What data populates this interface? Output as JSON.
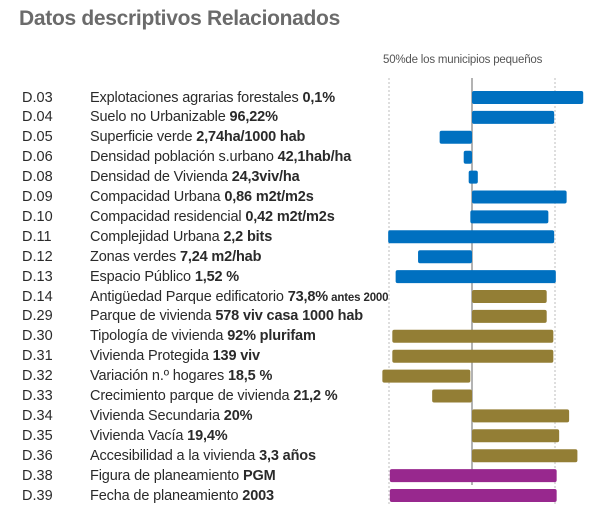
{
  "title": "Datos descriptivos Relacionados",
  "band_label": "50%de los municipios pequeños",
  "colors": {
    "environment": "#0070c0",
    "housing": "#937e35",
    "planning": "#98288e",
    "center_line": "#b3b3b3",
    "band_line": "#bdbdbd",
    "title": "#6b6b6b",
    "text": "#2a2a2a"
  },
  "chart_data": {
    "type": "bar",
    "orientation": "horizontal",
    "title": "Datos descriptivos Relacionados",
    "reference": "center line = median; dotted lines at -1 and +1 bound the central 50% of small municipalities",
    "xlim": [
      -1.1,
      1.35
    ],
    "grid": false,
    "legend": "none",
    "categories": [
      "D.03",
      "D.04",
      "D.05",
      "D.06",
      "D.08",
      "D.09",
      "D.10",
      "D.11",
      "D.12",
      "D.13",
      "D.14",
      "D.29",
      "D.30",
      "D.31",
      "D.32",
      "D.33",
      "D.34",
      "D.35",
      "D.36",
      "D.38",
      "D.39"
    ],
    "rows": [
      {
        "code": "D.03",
        "text": "Explotaciones agrarias forestales ",
        "value_text": "0,1%",
        "suffix": "",
        "start": 0.0,
        "end": 1.34,
        "group": "environment"
      },
      {
        "code": "D.04",
        "text": "Suelo no Urbanizable ",
        "value_text": "96,22%",
        "suffix": "",
        "start": 0.0,
        "end": 0.99,
        "group": "environment"
      },
      {
        "code": "D.05",
        "text": "Superficie verde  ",
        "value_text": "2,74ha/1000 hab",
        "suffix": "",
        "start": -0.39,
        "end": 0.0,
        "group": "environment"
      },
      {
        "code": "D.06",
        "text": "Densidad  población s.urbano ",
        "value_text": "42,1hab/ha",
        "suffix": "",
        "start": -0.1,
        "end": 0.0,
        "group": "environment"
      },
      {
        "code": "D.08",
        "text": "Densidad de Vivienda ",
        "value_text": "24,3viv/ha",
        "suffix": "",
        "start": -0.04,
        "end": 0.07,
        "group": "environment"
      },
      {
        "code": "D.09",
        "text": "Compacidad Urbana ",
        "value_text": "0,86 m2t/m2s",
        "suffix": "",
        "start": 0.0,
        "end": 1.14,
        "group": "environment"
      },
      {
        "code": "D.10",
        "text": "Compacidad residencial ",
        "value_text": "0,42 m2t/m2s",
        "suffix": "",
        "start": -0.02,
        "end": 0.92,
        "group": "environment"
      },
      {
        "code": "D.11",
        "text": "Complejidad Urbana ",
        "value_text": "2,2 bits",
        "suffix": "",
        "start": -1.01,
        "end": 0.99,
        "group": "environment"
      },
      {
        "code": "D.12",
        "text": "Zonas verdes ",
        "value_text": "7,24 m2/hab",
        "suffix": "",
        "start": -0.65,
        "end": 0.0,
        "group": "environment"
      },
      {
        "code": "D.13",
        "text": "Espacio Público ",
        "value_text": "1,52 %",
        "suffix": "",
        "start": -0.92,
        "end": 1.01,
        "group": "environment"
      },
      {
        "code": "D.14",
        "text": "Antigüedad Parque edificatorio ",
        "value_text": "73,8%",
        "suffix": " antes 2000",
        "start": 0.0,
        "end": 0.9,
        "group": "housing"
      },
      {
        "code": "D.29",
        "text": "Parque de vivienda ",
        "value_text": "578 viv casa 1000 hab",
        "suffix": "",
        "start": 0.0,
        "end": 0.9,
        "group": "housing"
      },
      {
        "code": "D.30",
        "text": "Tipología de vivienda ",
        "value_text": "92% plurifam",
        "suffix": "",
        "start": -0.96,
        "end": 0.98,
        "group": "housing"
      },
      {
        "code": "D.31",
        "text": "Vivienda Protegida  ",
        "value_text": "139 viv",
        "suffix": "",
        "start": -0.96,
        "end": 0.98,
        "group": "housing"
      },
      {
        "code": "D.32",
        "text": "Variación n.º hogares ",
        "value_text": "18,5 %",
        "suffix": "",
        "start": -1.08,
        "end": -0.02,
        "group": "housing"
      },
      {
        "code": "D.33",
        "text": "Crecimiento parque de vivienda ",
        "value_text": "21,2 %",
        "suffix": "",
        "start": -0.48,
        "end": 0.0,
        "group": "housing"
      },
      {
        "code": "D.34",
        "text": "Vivienda Secundaria ",
        "value_text": "20%",
        "suffix": "",
        "start": 0.0,
        "end": 1.17,
        "group": "housing"
      },
      {
        "code": "D.35",
        "text": "Vivienda Vacía ",
        "value_text": "19,4%",
        "suffix": "",
        "start": 0.0,
        "end": 1.05,
        "group": "housing"
      },
      {
        "code": "D.36",
        "text": "Accesibilidad a la vivienda ",
        "value_text": "3,3 años",
        "suffix": "",
        "start": 0.0,
        "end": 1.27,
        "group": "housing"
      },
      {
        "code": "D.38",
        "text": "Figura de planeamiento ",
        "value_text": "PGM",
        "suffix": "",
        "start": -0.99,
        "end": 1.02,
        "group": "planning"
      },
      {
        "code": "D.39",
        "text": "Fecha de planeamiento ",
        "value_text": "2003",
        "suffix": "",
        "start": -0.99,
        "end": 1.02,
        "group": "planning"
      }
    ]
  }
}
